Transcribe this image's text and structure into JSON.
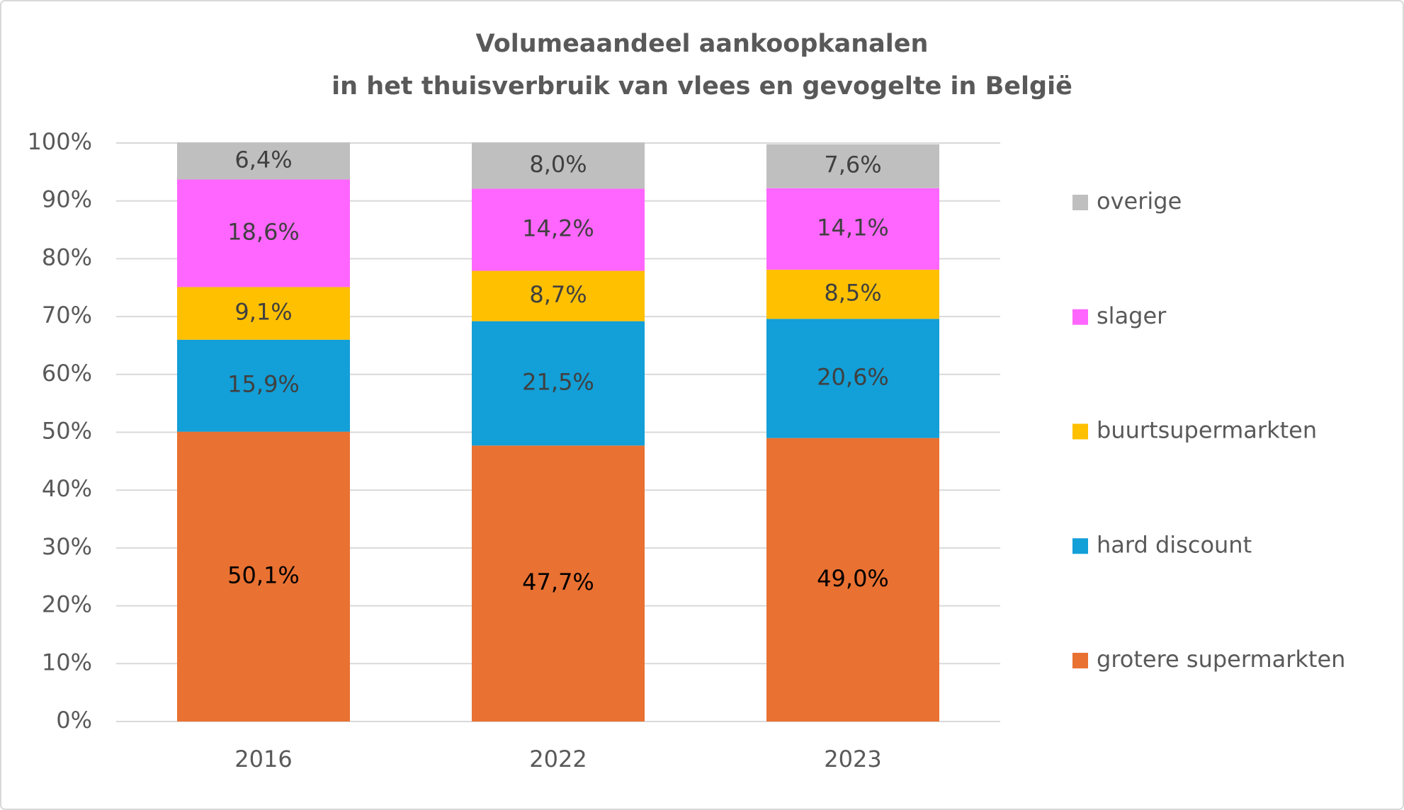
{
  "chart_data": {
    "type": "stacked_bar",
    "title": [
      "Volumeaandeel aankoopkanalen",
      "in het thuisverbruik van vlees en gevogelte in België"
    ],
    "categories": [
      "2016",
      "2022",
      "2023"
    ],
    "ylim": [
      0,
      100
    ],
    "yticks": [
      {
        "value": 0,
        "label": "0%"
      },
      {
        "value": 10,
        "label": "10%"
      },
      {
        "value": 20,
        "label": "20%"
      },
      {
        "value": 30,
        "label": "30%"
      },
      {
        "value": 40,
        "label": "40%"
      },
      {
        "value": 50,
        "label": "50%"
      },
      {
        "value": 60,
        "label": "60%"
      },
      {
        "value": 70,
        "label": "70%"
      },
      {
        "value": 80,
        "label": "80%"
      },
      {
        "value": 90,
        "label": "90%"
      },
      {
        "value": 100,
        "label": "100%"
      }
    ],
    "grid": true,
    "legend": "right",
    "series": [
      {
        "name": "grotere supermarkten",
        "color": "#e97132",
        "values": [
          50.1,
          47.7,
          49.0
        ],
        "value_labels": [
          "50,1%",
          "47,7%",
          "49,0%"
        ]
      },
      {
        "name": "hard discount",
        "color": "#139fd7",
        "values": [
          15.9,
          21.5,
          20.6
        ],
        "value_labels": [
          "15,9%",
          "21,5%",
          "20,6%"
        ]
      },
      {
        "name": "buurtsupermarkten",
        "color": "#ffc000",
        "values": [
          9.1,
          8.7,
          8.5
        ],
        "value_labels": [
          "9,1%",
          "8,7%",
          "8,5%"
        ]
      },
      {
        "name": "slager",
        "color": "#ff66ff",
        "values": [
          18.6,
          14.2,
          14.1
        ],
        "value_labels": [
          "18,6%",
          "14,2%",
          "14,1%"
        ]
      },
      {
        "name": "overige",
        "color": "#bfbfbf",
        "values": [
          6.4,
          8.0,
          7.6
        ],
        "value_labels": [
          "6,4%",
          "8,0%",
          "7,6%"
        ]
      }
    ]
  }
}
